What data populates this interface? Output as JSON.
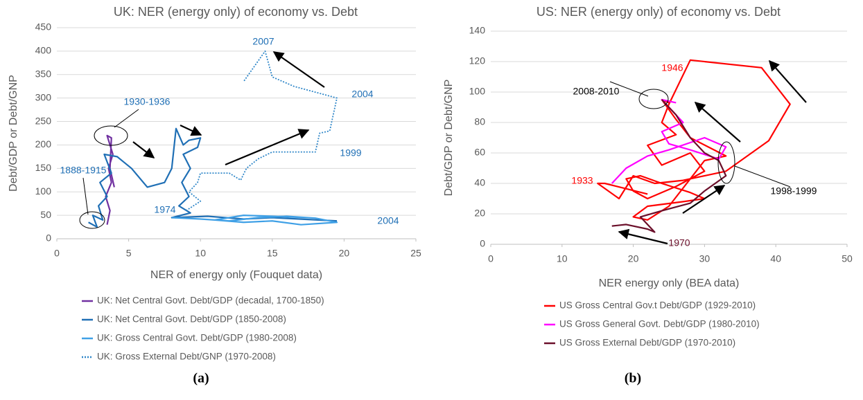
{
  "chart_data": [
    {
      "type": "line",
      "title": "UK: NER (energy only) of economy vs. Debt",
      "x_label": "NER of energy only (Fouquet data)",
      "y_label": "Debt/GDP or Debt/GNP",
      "caption": "(a)",
      "xlim": [
        0,
        25
      ],
      "xticks": [
        0,
        5,
        10,
        15,
        20,
        25
      ],
      "ylim": [
        0,
        450
      ],
      "yticks": [
        0,
        50,
        100,
        150,
        200,
        250,
        300,
        350,
        400,
        450
      ],
      "grid": true,
      "legend": "bottom",
      "annotations": [
        "1888-1915",
        "1930-1936",
        "1974",
        "2007",
        "2004",
        "1999",
        "2004"
      ],
      "series": [
        {
          "name": "UK: Net Central Govt. Debt/GDP (decadal, 1700-1850)",
          "color": "#7030a0",
          "x": [
            3.5,
            3.7,
            3.4,
            3.8,
            3.6,
            3.9,
            3.5,
            3.8,
            3.7,
            4.0
          ],
          "values": [
            30,
            60,
            90,
            120,
            150,
            180,
            220,
            215,
            150,
            110
          ]
        },
        {
          "name": "UK: Net Central Govt. Debt/GDP (1850-2008)",
          "color": "#1f6fb5",
          "x": [
            2.2,
            2.8,
            2.5,
            3.2,
            2.9,
            3.5,
            3.0,
            3.8,
            3.3,
            4.2,
            4.6,
            5.2,
            6.3,
            7.5,
            8.0,
            8.3,
            8.8,
            9.2,
            10.0,
            9.8,
            8.8,
            9.3,
            8.7,
            9.2,
            8.5,
            9.3,
            8.0,
            10.5,
            13,
            15,
            19.5
          ],
          "values": [
            35,
            25,
            50,
            40,
            70,
            90,
            120,
            140,
            180,
            175,
            165,
            150,
            110,
            120,
            150,
            235,
            200,
            210,
            215,
            195,
            180,
            150,
            120,
            90,
            70,
            55,
            45,
            48,
            42,
            45,
            38
          ]
        },
        {
          "name": "UK: Gross Central Govt. Debt/GDP (1980-2008)",
          "color": "#3fa0e6",
          "x": [
            8,
            10,
            12,
            14,
            16,
            18,
            19.5,
            17,
            15,
            13,
            11,
            13,
            15,
            17.5
          ],
          "values": [
            45,
            42,
            38,
            45,
            48,
            44,
            35,
            30,
            38,
            35,
            40,
            50,
            48,
            45
          ]
        },
        {
          "name": "UK: Gross External Debt/GNP (1970-2008)",
          "color": "#2e86c8",
          "dash": true,
          "x": [
            9,
            10,
            9.2,
            9.8,
            10,
            12,
            12.8,
            13.2,
            14,
            15,
            18,
            18.3,
            19,
            19.5,
            16.5,
            15,
            14.5,
            13
          ],
          "values": [
            60,
            80,
            100,
            120,
            140,
            140,
            125,
            150,
            170,
            185,
            185,
            225,
            230,
            300,
            325,
            345,
            400,
            335
          ]
        }
      ]
    },
    {
      "type": "line",
      "title": "US: NER (energy only) of economy vs. Debt",
      "x_label": "NER energy only (BEA data)",
      "y_label": "Debt/GDP or Debt/GNP",
      "caption": "(b)",
      "xlim": [
        0,
        50
      ],
      "xticks": [
        0,
        10,
        20,
        30,
        40,
        50
      ],
      "ylim": [
        0,
        140
      ],
      "yticks": [
        0,
        20,
        40,
        60,
        80,
        100,
        120,
        140
      ],
      "grid": true,
      "legend": "bottom",
      "annotations": [
        "1946",
        "2008-2010",
        "1933",
        "1998-1999",
        "1970"
      ],
      "series": [
        {
          "name": "US Gross Central Gov.t Debt/GDP (1929-2010)",
          "color": "#ff0000",
          "x": [
            22,
            16,
            15,
            18,
            20,
            23,
            27,
            33,
            39,
            42,
            38,
            28,
            25,
            24,
            26,
            22,
            24,
            28,
            30,
            26,
            22,
            20,
            19,
            21,
            24,
            28,
            30,
            27,
            22,
            20,
            22,
            25,
            30,
            33,
            28,
            26,
            24,
            25
          ],
          "values": [
            33,
            40,
            40,
            30,
            45,
            40,
            42,
            48,
            68,
            92,
            116,
            121,
            92,
            80,
            72,
            65,
            52,
            60,
            48,
            38,
            30,
            35,
            43,
            45,
            40,
            34,
            30,
            28,
            25,
            18,
            16,
            25,
            55,
            58,
            70,
            82,
            95,
            93
          ]
        },
        {
          "name": "US Gross General Govt. Debt/GDP (1980-2010)",
          "color": "#ff00ff",
          "x": [
            17,
            19,
            22,
            25,
            30,
            33,
            32,
            28,
            25,
            24,
            27,
            25,
            24,
            26
          ],
          "values": [
            40,
            50,
            58,
            62,
            70,
            64,
            56,
            62,
            66,
            74,
            80,
            90,
            95,
            93
          ]
        },
        {
          "name": "US Gross External Debt/GDP (1970-2010)",
          "color": "#6b0f2a",
          "x": [
            17,
            19,
            22,
            23,
            21,
            24,
            28,
            30,
            33,
            32,
            30,
            28,
            26,
            24
          ],
          "values": [
            12,
            13,
            10,
            8,
            18,
            22,
            27,
            35,
            45,
            55,
            60,
            70,
            85,
            95
          ]
        }
      ]
    }
  ]
}
